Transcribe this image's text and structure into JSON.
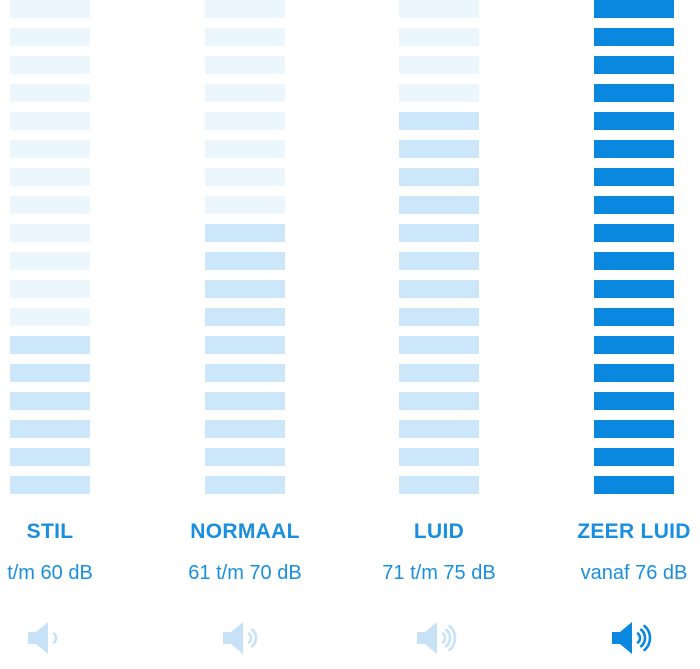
{
  "levels": [
    {
      "id": "stil",
      "label": "STIL",
      "range": "t/m 60 dB",
      "icon": "speaker-low-icon",
      "active_bars": 6,
      "waves": 1,
      "emphasis": false
    },
    {
      "id": "normaal",
      "label": "NORMAAL",
      "range": "61 t/m 70 dB",
      "icon": "speaker-medium-icon",
      "active_bars": 10,
      "waves": 2,
      "emphasis": false
    },
    {
      "id": "luid",
      "label": "LUID",
      "range": "71 t/m 75 dB",
      "icon": "speaker-high-icon",
      "active_bars": 14,
      "waves": 3,
      "emphasis": false
    },
    {
      "id": "zeer-luid",
      "label": "ZEER LUID",
      "range": "vanaf 76 dB",
      "icon": "speaker-max-icon",
      "active_bars": 18,
      "waves": 3,
      "emphasis": true
    }
  ],
  "total_bars": 18,
  "colors": {
    "bar_inactive": "#ebf6fd",
    "bar_active": "#cce7f9",
    "bar_emphasis": "#0a88e0",
    "text": "#1a8fe0",
    "icon_light": "#c7e2f7",
    "icon_strong": "#0a88e0"
  }
}
